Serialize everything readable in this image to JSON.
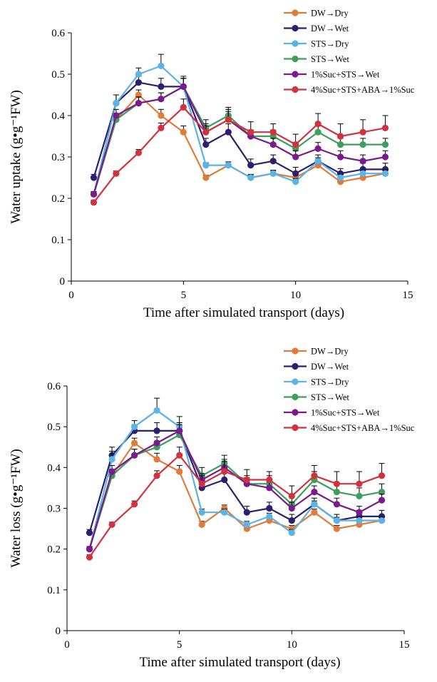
{
  "chart_data": [
    {
      "type": "line",
      "xlabel": "Time after simulated transport (days)",
      "ylabel": "Water uptake (g•g⁻¹FW)",
      "xlim": [
        0,
        15
      ],
      "ylim": [
        0,
        0.6
      ],
      "xticks": [
        0,
        5,
        10,
        15
      ],
      "yticks": [
        0,
        0.1,
        0.2,
        0.3,
        0.4,
        0.5,
        0.6
      ],
      "grid": false,
      "legend_position": "top-right",
      "error_bars": true,
      "x": [
        1,
        2,
        3,
        4,
        5,
        6,
        7,
        8,
        9,
        10,
        11,
        12,
        13,
        14
      ],
      "series": [
        {
          "name": "DW→Dry",
          "color": "#E07B39",
          "values": [
            0.21,
            0.39,
            0.45,
            0.4,
            0.36,
            0.25,
            0.28,
            0.25,
            0.26,
            0.25,
            0.28,
            0.24,
            0.25,
            0.26
          ],
          "errors": [
            0.006,
            0.012,
            0.012,
            0.015,
            0.015,
            0.006,
            0.008,
            0.008,
            0.006,
            0.008,
            0.008,
            0.006,
            0.008,
            0.008
          ]
        },
        {
          "name": "DW→Wet",
          "color": "#2E1F6E",
          "values": [
            0.25,
            0.43,
            0.48,
            0.47,
            0.47,
            0.33,
            0.36,
            0.28,
            0.29,
            0.26,
            0.29,
            0.26,
            0.27,
            0.27
          ],
          "errors": [
            0.008,
            0.02,
            0.015,
            0.02,
            0.02,
            0.015,
            0.02,
            0.015,
            0.015,
            0.015,
            0.015,
            0.012,
            0.015,
            0.015
          ]
        },
        {
          "name": "STS→Dry",
          "color": "#5AB4E5",
          "values": [
            0.21,
            0.43,
            0.5,
            0.52,
            0.47,
            0.28,
            0.28,
            0.25,
            0.26,
            0.24,
            0.29,
            0.25,
            0.26,
            0.26
          ],
          "errors": [
            0.006,
            0.02,
            0.015,
            0.028,
            0.02,
            0.006,
            0.008,
            0.006,
            0.008,
            0.008,
            0.008,
            0.008,
            0.008,
            0.008
          ]
        },
        {
          "name": "STS→Wet",
          "color": "#3E9E5E",
          "values": [
            0.21,
            0.39,
            0.43,
            0.44,
            0.47,
            0.37,
            0.4,
            0.35,
            0.35,
            0.32,
            0.36,
            0.33,
            0.33,
            0.33
          ],
          "errors": [
            0.006,
            0.015,
            0.015,
            0.015,
            0.025,
            0.02,
            0.02,
            0.015,
            0.015,
            0.015,
            0.015,
            0.015,
            0.015,
            0.015
          ]
        },
        {
          "name": "1%Suc+STS→Wet",
          "color": "#7A1A8C",
          "values": [
            0.21,
            0.4,
            0.43,
            0.44,
            0.47,
            0.36,
            0.39,
            0.35,
            0.33,
            0.3,
            0.32,
            0.3,
            0.29,
            0.3
          ],
          "errors": [
            0.006,
            0.015,
            0.015,
            0.015,
            0.02,
            0.015,
            0.02,
            0.015,
            0.015,
            0.015,
            0.015,
            0.015,
            0.015,
            0.015
          ]
        },
        {
          "name": "4%Suc+STS+ABA→1%Suc",
          "color": "#D1323E",
          "values": [
            0.19,
            0.26,
            0.31,
            0.37,
            0.42,
            0.36,
            0.39,
            0.36,
            0.36,
            0.33,
            0.38,
            0.35,
            0.36,
            0.37
          ],
          "errors": [
            0.006,
            0.006,
            0.008,
            0.012,
            0.02,
            0.02,
            0.025,
            0.025,
            0.02,
            0.025,
            0.025,
            0.03,
            0.03,
            0.03
          ]
        }
      ]
    },
    {
      "type": "line",
      "xlabel": "Time after simulated transport (days)",
      "ylabel": "Water loss (g•g⁻¹FW)",
      "xlim": [
        0,
        15
      ],
      "ylim": [
        0,
        0.6
      ],
      "xticks": [
        0,
        5,
        10,
        15
      ],
      "yticks": [
        0,
        0.1,
        0.2,
        0.3,
        0.4,
        0.5,
        0.6
      ],
      "grid": false,
      "legend_position": "top-right",
      "error_bars": true,
      "x": [
        1,
        2,
        3,
        4,
        5,
        6,
        7,
        8,
        9,
        10,
        11,
        12,
        13,
        14
      ],
      "series": [
        {
          "name": "DW→Dry",
          "color": "#E07B39",
          "values": [
            0.2,
            0.38,
            0.46,
            0.42,
            0.39,
            0.26,
            0.3,
            0.25,
            0.27,
            0.25,
            0.29,
            0.25,
            0.26,
            0.27
          ],
          "errors": [
            0.006,
            0.012,
            0.012,
            0.015,
            0.015,
            0.008,
            0.008,
            0.008,
            0.008,
            0.008,
            0.008,
            0.008,
            0.008,
            0.008
          ]
        },
        {
          "name": "DW→Wet",
          "color": "#2E1F6E",
          "values": [
            0.24,
            0.43,
            0.49,
            0.49,
            0.49,
            0.35,
            0.37,
            0.29,
            0.3,
            0.27,
            0.31,
            0.27,
            0.28,
            0.28
          ],
          "errors": [
            0.008,
            0.02,
            0.015,
            0.02,
            0.02,
            0.015,
            0.02,
            0.015,
            0.015,
            0.015,
            0.015,
            0.015,
            0.015,
            0.015
          ]
        },
        {
          "name": "STS→Dry",
          "color": "#5AB4E5",
          "values": [
            0.2,
            0.42,
            0.5,
            0.54,
            0.5,
            0.29,
            0.29,
            0.26,
            0.28,
            0.24,
            0.31,
            0.27,
            0.27,
            0.27
          ],
          "errors": [
            0.006,
            0.02,
            0.015,
            0.03,
            0.025,
            0.008,
            0.008,
            0.008,
            0.008,
            0.008,
            0.008,
            0.008,
            0.008,
            0.008
          ]
        },
        {
          "name": "STS→Wet",
          "color": "#3E9E5E",
          "values": [
            0.2,
            0.38,
            0.43,
            0.45,
            0.48,
            0.38,
            0.41,
            0.36,
            0.36,
            0.31,
            0.37,
            0.34,
            0.33,
            0.34
          ],
          "errors": [
            0.006,
            0.015,
            0.015,
            0.015,
            0.025,
            0.02,
            0.02,
            0.02,
            0.02,
            0.02,
            0.02,
            0.02,
            0.02,
            0.02
          ]
        },
        {
          "name": "1%Suc+STS→Wet",
          "color": "#7A1A8C",
          "values": [
            0.2,
            0.39,
            0.43,
            0.46,
            0.49,
            0.37,
            0.4,
            0.36,
            0.35,
            0.3,
            0.34,
            0.31,
            0.29,
            0.32
          ],
          "errors": [
            0.006,
            0.015,
            0.015,
            0.015,
            0.02,
            0.015,
            0.02,
            0.015,
            0.015,
            0.015,
            0.015,
            0.015,
            0.015,
            0.015
          ]
        },
        {
          "name": "4%Suc+STS+ABA→1%Suc",
          "color": "#D1323E",
          "values": [
            0.18,
            0.26,
            0.31,
            0.38,
            0.43,
            0.36,
            0.39,
            0.37,
            0.37,
            0.33,
            0.38,
            0.36,
            0.36,
            0.38
          ],
          "errors": [
            0.006,
            0.006,
            0.008,
            0.012,
            0.02,
            0.02,
            0.025,
            0.025,
            0.02,
            0.025,
            0.025,
            0.03,
            0.03,
            0.03
          ]
        }
      ]
    }
  ]
}
